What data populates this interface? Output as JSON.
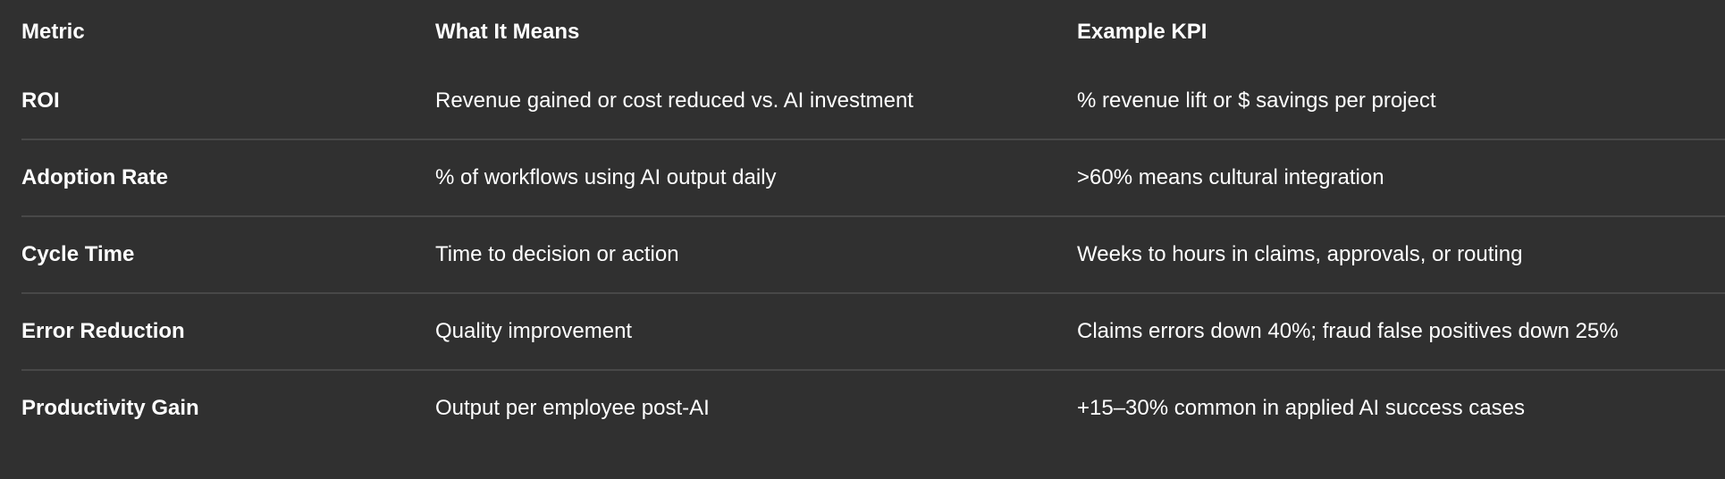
{
  "table": {
    "headers": [
      "Metric",
      "What It Means",
      "Example KPI"
    ],
    "rows": [
      [
        "ROI",
        "Revenue gained or cost reduced vs. AI investment",
        "% revenue lift or $ savings per project"
      ],
      [
        "Adoption Rate",
        "% of workflows using AI output daily",
        ">60% means cultural integration"
      ],
      [
        "Cycle Time",
        "Time to decision or action",
        "Weeks to hours in claims, approvals, or routing"
      ],
      [
        "Error Reduction",
        "Quality improvement",
        "Claims errors down 40%; fraud false positives down 25%"
      ],
      [
        "Productivity Gain",
        "Output per employee post-AI",
        "+15–30% common in applied AI success cases"
      ]
    ]
  },
  "colors": {
    "background": "#303030",
    "text": "#ffffff",
    "divider": "#484848"
  }
}
